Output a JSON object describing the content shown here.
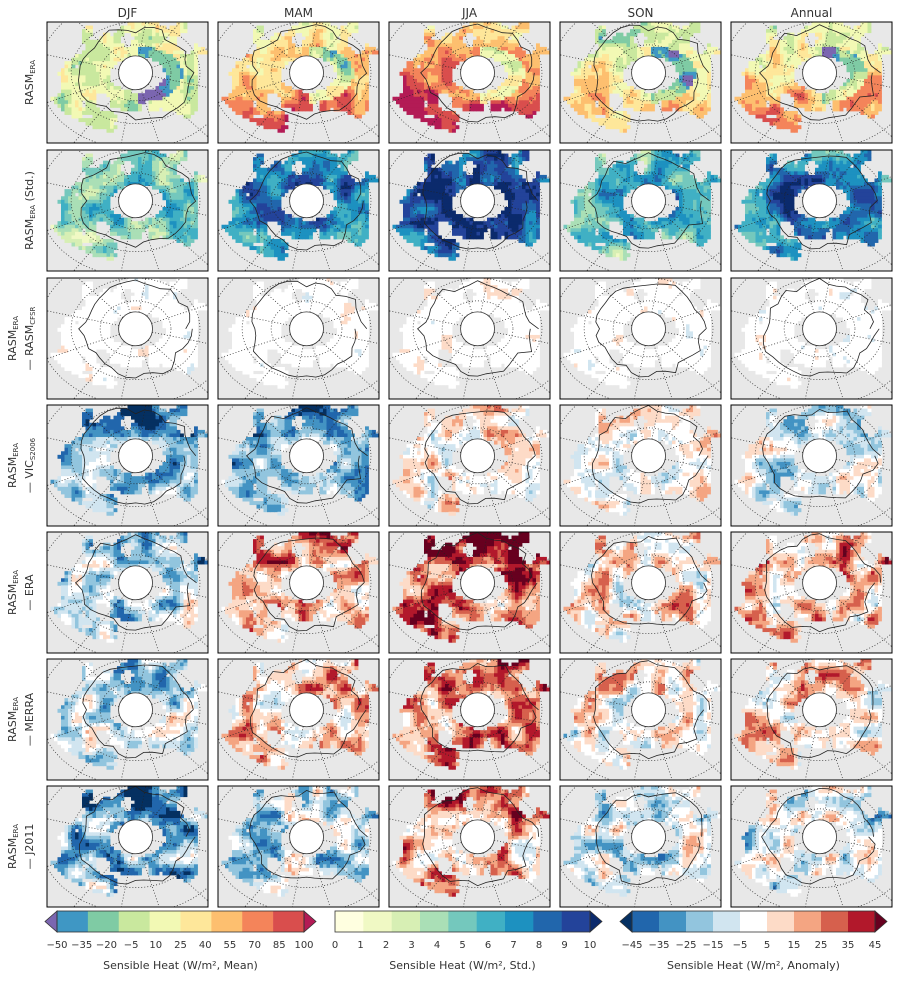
{
  "chart_data": {
    "type": "heatmap",
    "description_columns": [
      "DJF",
      "MAM",
      "JJA",
      "SON",
      "Annual"
    ],
    "columns": [
      "DJF",
      "MAM",
      "JJA",
      "SON",
      "Annual"
    ],
    "rows": [
      {
        "lines": [
          {
            "main": "RASM",
            "sub": "ERA",
            "tail": ""
          }
        ],
        "field": "mean"
      },
      {
        "lines": [
          {
            "main": "RASM",
            "sub": "ERA",
            "tail": " (Std.)"
          }
        ],
        "field": "std"
      },
      {
        "lines": [
          {
            "main": "RASM",
            "sub": "ERA",
            "tail": ""
          },
          {
            "main": "— RASM",
            "sub": "CFSR",
            "tail": ""
          }
        ],
        "field": "anomaly"
      },
      {
        "lines": [
          {
            "main": "RASM",
            "sub": "ERA",
            "tail": ""
          },
          {
            "main": "— VIC",
            "sub": "S2006",
            "tail": ""
          }
        ],
        "field": "anomaly"
      },
      {
        "lines": [
          {
            "main": "RASM",
            "sub": "ERA",
            "tail": ""
          },
          {
            "main": "— ERA",
            "sub": "",
            "tail": ""
          }
        ],
        "field": "anomaly"
      },
      {
        "lines": [
          {
            "main": "RASM",
            "sub": "ERA",
            "tail": ""
          },
          {
            "main": "— MERRA",
            "sub": "",
            "tail": ""
          }
        ],
        "field": "anomaly"
      },
      {
        "lines": [
          {
            "main": "RASM",
            "sub": "ERA",
            "tail": ""
          },
          {
            "main": "— J2011",
            "sub": "",
            "tail": ""
          }
        ],
        "field": "anomaly"
      }
    ],
    "colorbars": [
      {
        "name": "mean",
        "label": "Sensible Heat (W/m², Mean)",
        "ticks": [
          "−50",
          "−35",
          "−20",
          "−5",
          "10",
          "25",
          "40",
          "55",
          "70",
          "85",
          "100"
        ],
        "colors": [
          "#7b66b0",
          "#3f97c4",
          "#7fcba4",
          "#c9e89e",
          "#f2f9b4",
          "#fee79a",
          "#fdbf6f",
          "#f4845a",
          "#d94e4d",
          "#b31b55"
        ],
        "extend": "both"
      },
      {
        "name": "std",
        "label": "Sensible Heat (W/m², Std.)",
        "ticks": [
          "0",
          "1",
          "2",
          "3",
          "4",
          "5",
          "6",
          "7",
          "8",
          "9",
          "10"
        ],
        "colors": [
          "#ffffe0",
          "#f0f9c4",
          "#d7efb4",
          "#aadfb6",
          "#74c8bd",
          "#40b0c4",
          "#1d91c0",
          "#2166ac",
          "#23439a",
          "#0b2a6c"
        ],
        "extend": "max"
      },
      {
        "name": "anomaly",
        "label": "Sensible Heat (W/m², Anomaly)",
        "ticks": [
          "−45",
          "−35",
          "−25",
          "−15",
          "−5",
          "5",
          "15",
          "25",
          "35",
          "45"
        ],
        "colors": [
          "#053061",
          "#2166ac",
          "#4393c3",
          "#92c5de",
          "#d1e5f0",
          "#ffffff",
          "#fddbc7",
          "#f4a582",
          "#d6604d",
          "#b2182b",
          "#67001f"
        ],
        "extend": "both"
      }
    ],
    "map_background": "#e8e8e8",
    "grid": true
  }
}
